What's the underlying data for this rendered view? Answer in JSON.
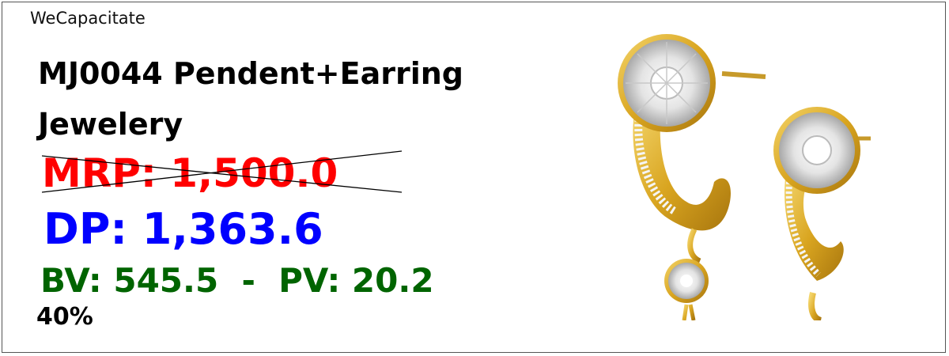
{
  "brand": "WeCapacitate",
  "product": {
    "title": "MJ0044 Pendent+Earring Jewelery",
    "mrp_label": "MRP: 1,500.0",
    "dp_label": "DP: 1,363.6",
    "bv_pv_label": "BV: 545.5  -  PV: 20.2",
    "discount": "40%"
  },
  "image": {
    "icon": "gold-diamond-earrings-image"
  },
  "colors": {
    "mrp": "#ff0000",
    "dp": "#0000ff",
    "bv_pv": "#006400",
    "gold": "#d9a520",
    "stone": "#eeeeee"
  }
}
